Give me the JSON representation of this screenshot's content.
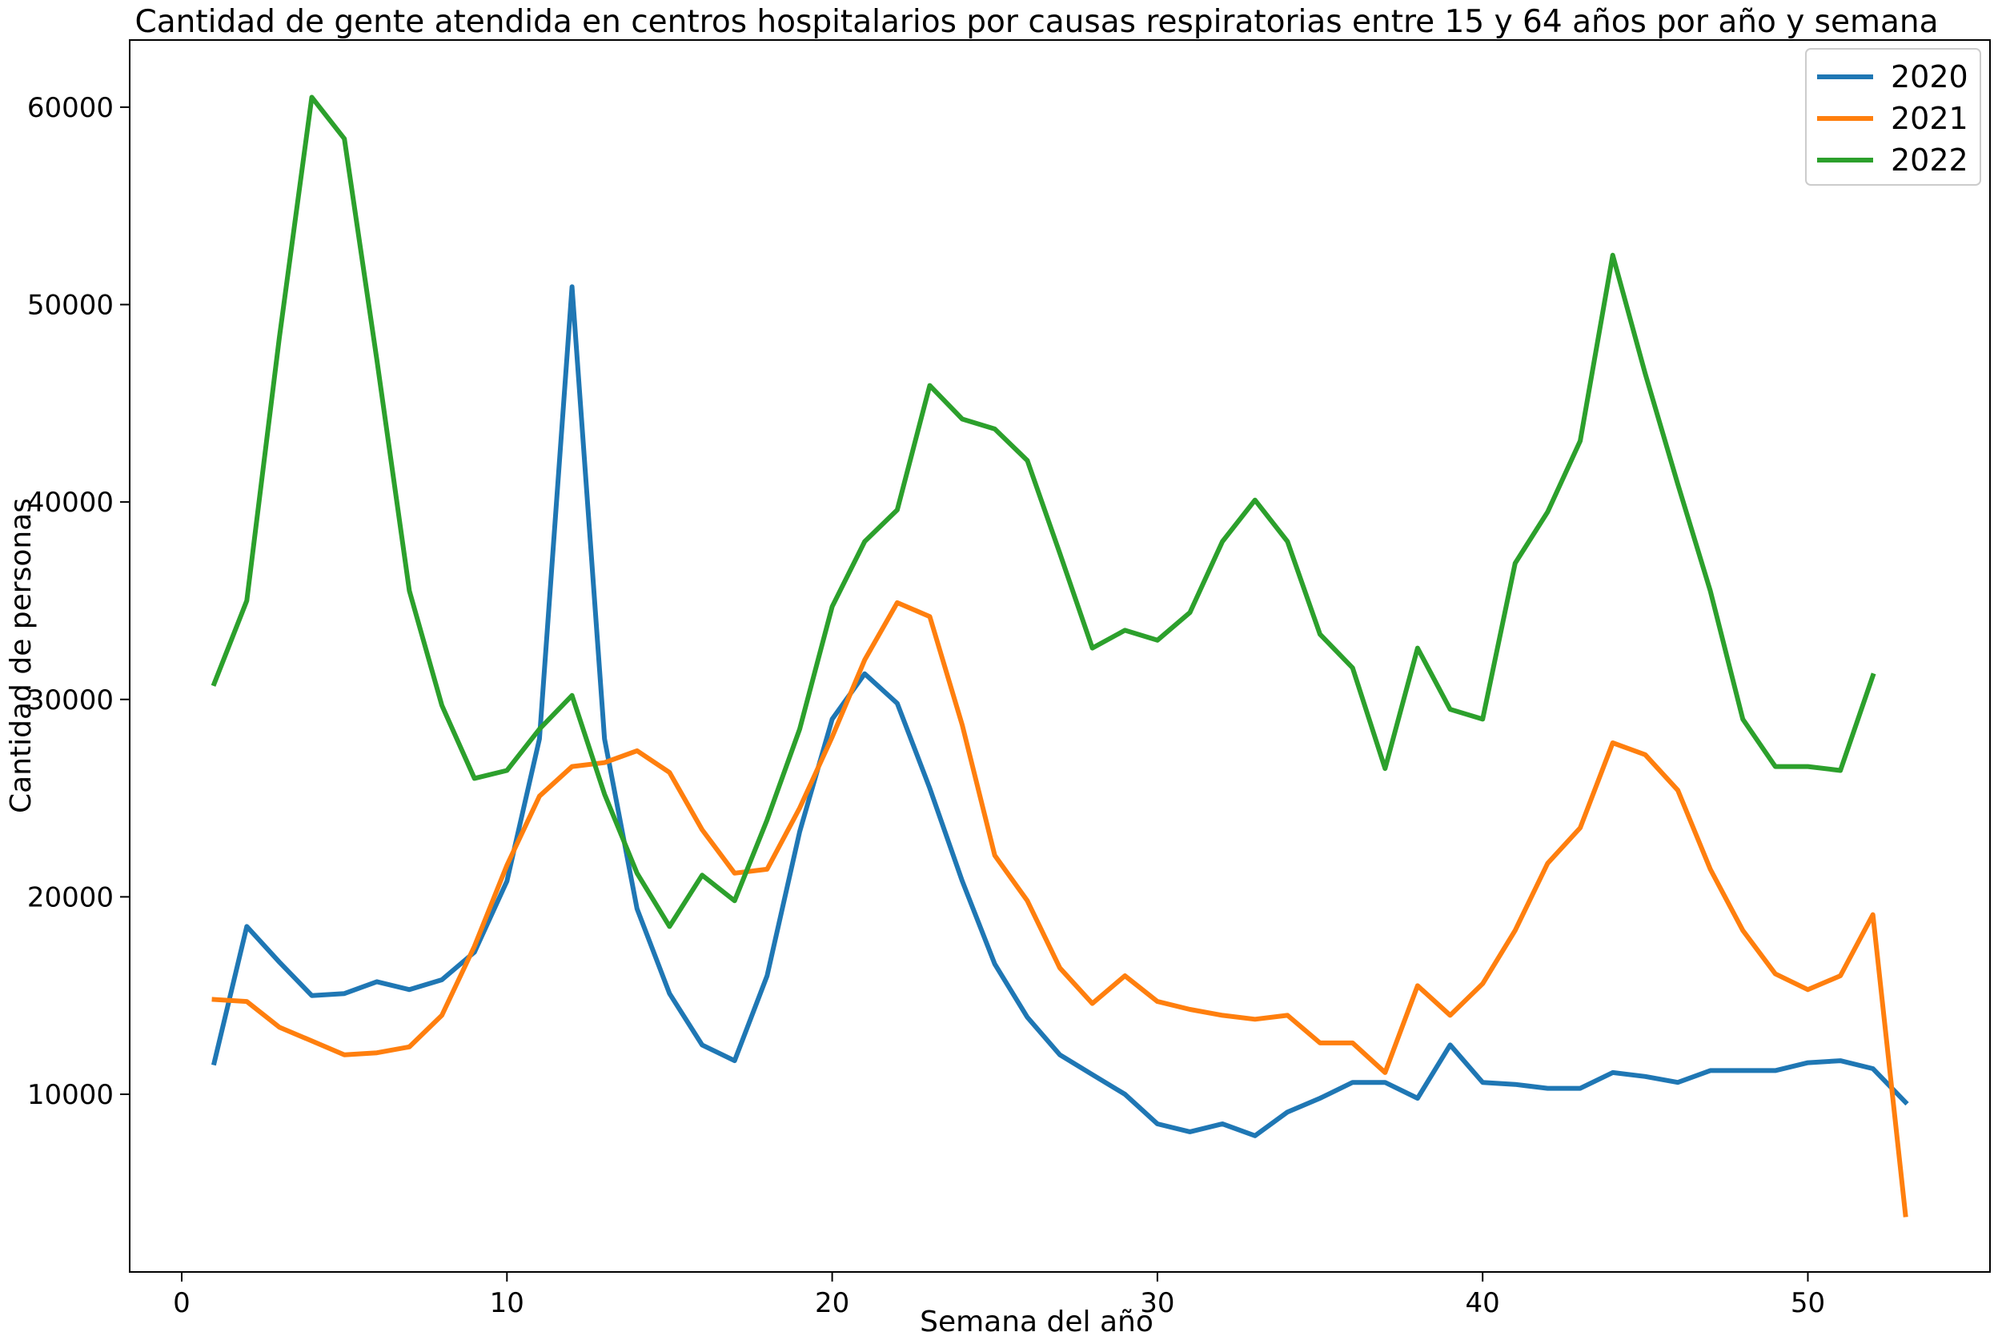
{
  "chart_data": {
    "type": "line",
    "title": "Cantidad de gente atendida en centros hospitalarios por causas respiratorias entre 15 y 64 años por año y semana",
    "xlabel": "Semana del año",
    "ylabel": "Cantidad de personas",
    "xlim": [
      -1.6,
      55.6
    ],
    "ylim": [
      1000,
      63400
    ],
    "xticks": [
      0,
      10,
      20,
      30,
      40,
      50
    ],
    "yticks": [
      10000,
      20000,
      30000,
      40000,
      50000,
      60000
    ],
    "grid": false,
    "legend_position": "top-right",
    "series": [
      {
        "name": "2020",
        "color": "#1f77b4",
        "x": [
          1,
          2,
          3,
          4,
          5,
          6,
          7,
          8,
          9,
          10,
          11,
          12,
          13,
          14,
          15,
          16,
          17,
          18,
          19,
          20,
          21,
          22,
          23,
          24,
          25,
          26,
          27,
          28,
          29,
          30,
          31,
          32,
          33,
          34,
          35,
          36,
          37,
          38,
          39,
          40,
          41,
          42,
          43,
          44,
          45,
          46,
          47,
          48,
          49,
          50,
          51,
          52,
          53
        ],
        "y": [
          11600,
          18500,
          16700,
          15000,
          15100,
          15700,
          15300,
          15800,
          17200,
          20800,
          28000,
          50900,
          28000,
          19400,
          15100,
          12500,
          11700,
          16000,
          23300,
          29000,
          31300,
          29800,
          25500,
          20800,
          16600,
          13900,
          12000,
          11000,
          10000,
          8500,
          8100,
          8500,
          7900,
          9100,
          9800,
          10600,
          10600,
          9800,
          12500,
          10600,
          10500,
          10300,
          10300,
          11100,
          10900,
          10600,
          11200,
          11200,
          11200,
          11600,
          11700,
          11300,
          9600
        ]
      },
      {
        "name": "2021",
        "color": "#ff7f0e",
        "x": [
          1,
          2,
          3,
          4,
          5,
          6,
          7,
          8,
          9,
          10,
          11,
          12,
          13,
          14,
          15,
          16,
          17,
          18,
          19,
          20,
          21,
          22,
          23,
          24,
          25,
          26,
          27,
          28,
          29,
          30,
          31,
          32,
          33,
          34,
          35,
          36,
          37,
          38,
          39,
          40,
          41,
          42,
          43,
          44,
          45,
          46,
          47,
          48,
          49,
          50,
          51,
          52,
          53
        ],
        "y": [
          14800,
          14700,
          13400,
          12700,
          12000,
          12100,
          12400,
          14000,
          17500,
          21600,
          25100,
          26600,
          26800,
          27400,
          26300,
          23400,
          21200,
          21400,
          24500,
          28100,
          32000,
          34900,
          34200,
          28700,
          22100,
          19800,
          16400,
          14600,
          16000,
          14700,
          14300,
          14000,
          13800,
          14000,
          12600,
          12600,
          11100,
          15500,
          14000,
          15600,
          18300,
          21700,
          23500,
          27800,
          27200,
          25400,
          21400,
          18300,
          16100,
          15300,
          16000,
          19100,
          3900
        ]
      },
      {
        "name": "2022",
        "color": "#2ca02c",
        "x": [
          1,
          2,
          3,
          4,
          5,
          6,
          7,
          8,
          9,
          10,
          11,
          12,
          13,
          14,
          15,
          16,
          17,
          18,
          19,
          20,
          21,
          22,
          23,
          24,
          25,
          26,
          27,
          28,
          29,
          30,
          31,
          32,
          33,
          34,
          35,
          36,
          37,
          38,
          39,
          40,
          41,
          42,
          43,
          44,
          45,
          46,
          47,
          48,
          49,
          50,
          51,
          52
        ],
        "y": [
          30800,
          35000,
          48300,
          60500,
          58400,
          47200,
          35500,
          29700,
          26000,
          26400,
          28500,
          30200,
          25200,
          21200,
          18500,
          21100,
          19800,
          23900,
          28500,
          34700,
          38000,
          39600,
          45900,
          44200,
          43700,
          42100,
          37400,
          32600,
          33500,
          33000,
          34400,
          38000,
          40100,
          38000,
          33300,
          31600,
          26500,
          32600,
          29500,
          29000,
          36900,
          39500,
          43100,
          52500,
          46500,
          40900,
          35500,
          29000,
          26600,
          26600,
          26400,
          31200
        ]
      }
    ]
  }
}
